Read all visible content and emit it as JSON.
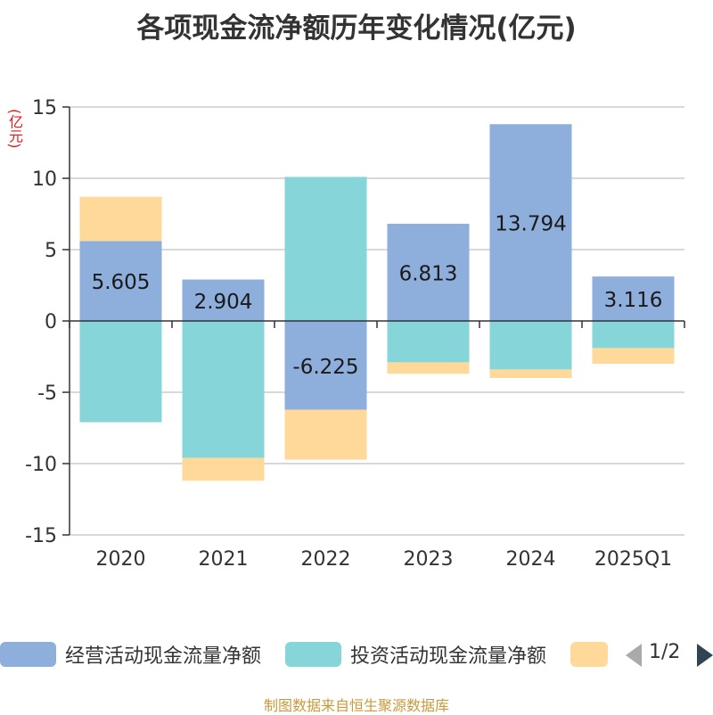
{
  "title": "各项现金流净额历年变化情况(亿元)",
  "unit_label": "(亿元)",
  "source_text": "制图数据来自恒生聚源数据库",
  "pager": {
    "text": "1/2"
  },
  "colors": {
    "operating": "#8eaedb",
    "investing": "#86d5d8",
    "financing": "#ffd999",
    "axis": "#333333",
    "grid": "#cccccc",
    "unit": "#e8161b",
    "source": "#c89a3c"
  },
  "chart_data": {
    "type": "bar",
    "stacked": true,
    "categories": [
      "2020",
      "2021",
      "2022",
      "2023",
      "2024",
      "2025Q1"
    ],
    "ylim": [
      -15,
      15
    ],
    "yticks": [
      15,
      10,
      5,
      0,
      -5,
      -10,
      -15
    ],
    "ytick_labels": [
      "15",
      "10",
      "5",
      "0",
      "-5",
      "-10",
      "-15"
    ],
    "grid": true,
    "legend_position": "bottom",
    "series": [
      {
        "name": "经营活动现金流量净额",
        "color": "#8eaedb",
        "values": [
          5.605,
          2.904,
          -6.225,
          6.813,
          13.794,
          3.116
        ],
        "labels": [
          "5.605",
          "2.904",
          "-6.225",
          "6.813",
          "13.794",
          "3.116"
        ]
      },
      {
        "name": "投资活动现金流量净额",
        "color": "#86d5d8",
        "values": [
          -7.1,
          -9.6,
          10.1,
          -2.9,
          -3.4,
          -1.9
        ]
      },
      {
        "name": "",
        "color": "#ffd999",
        "values": [
          3.1,
          -1.6,
          -3.5,
          -0.8,
          -0.6,
          -1.1
        ]
      }
    ]
  }
}
